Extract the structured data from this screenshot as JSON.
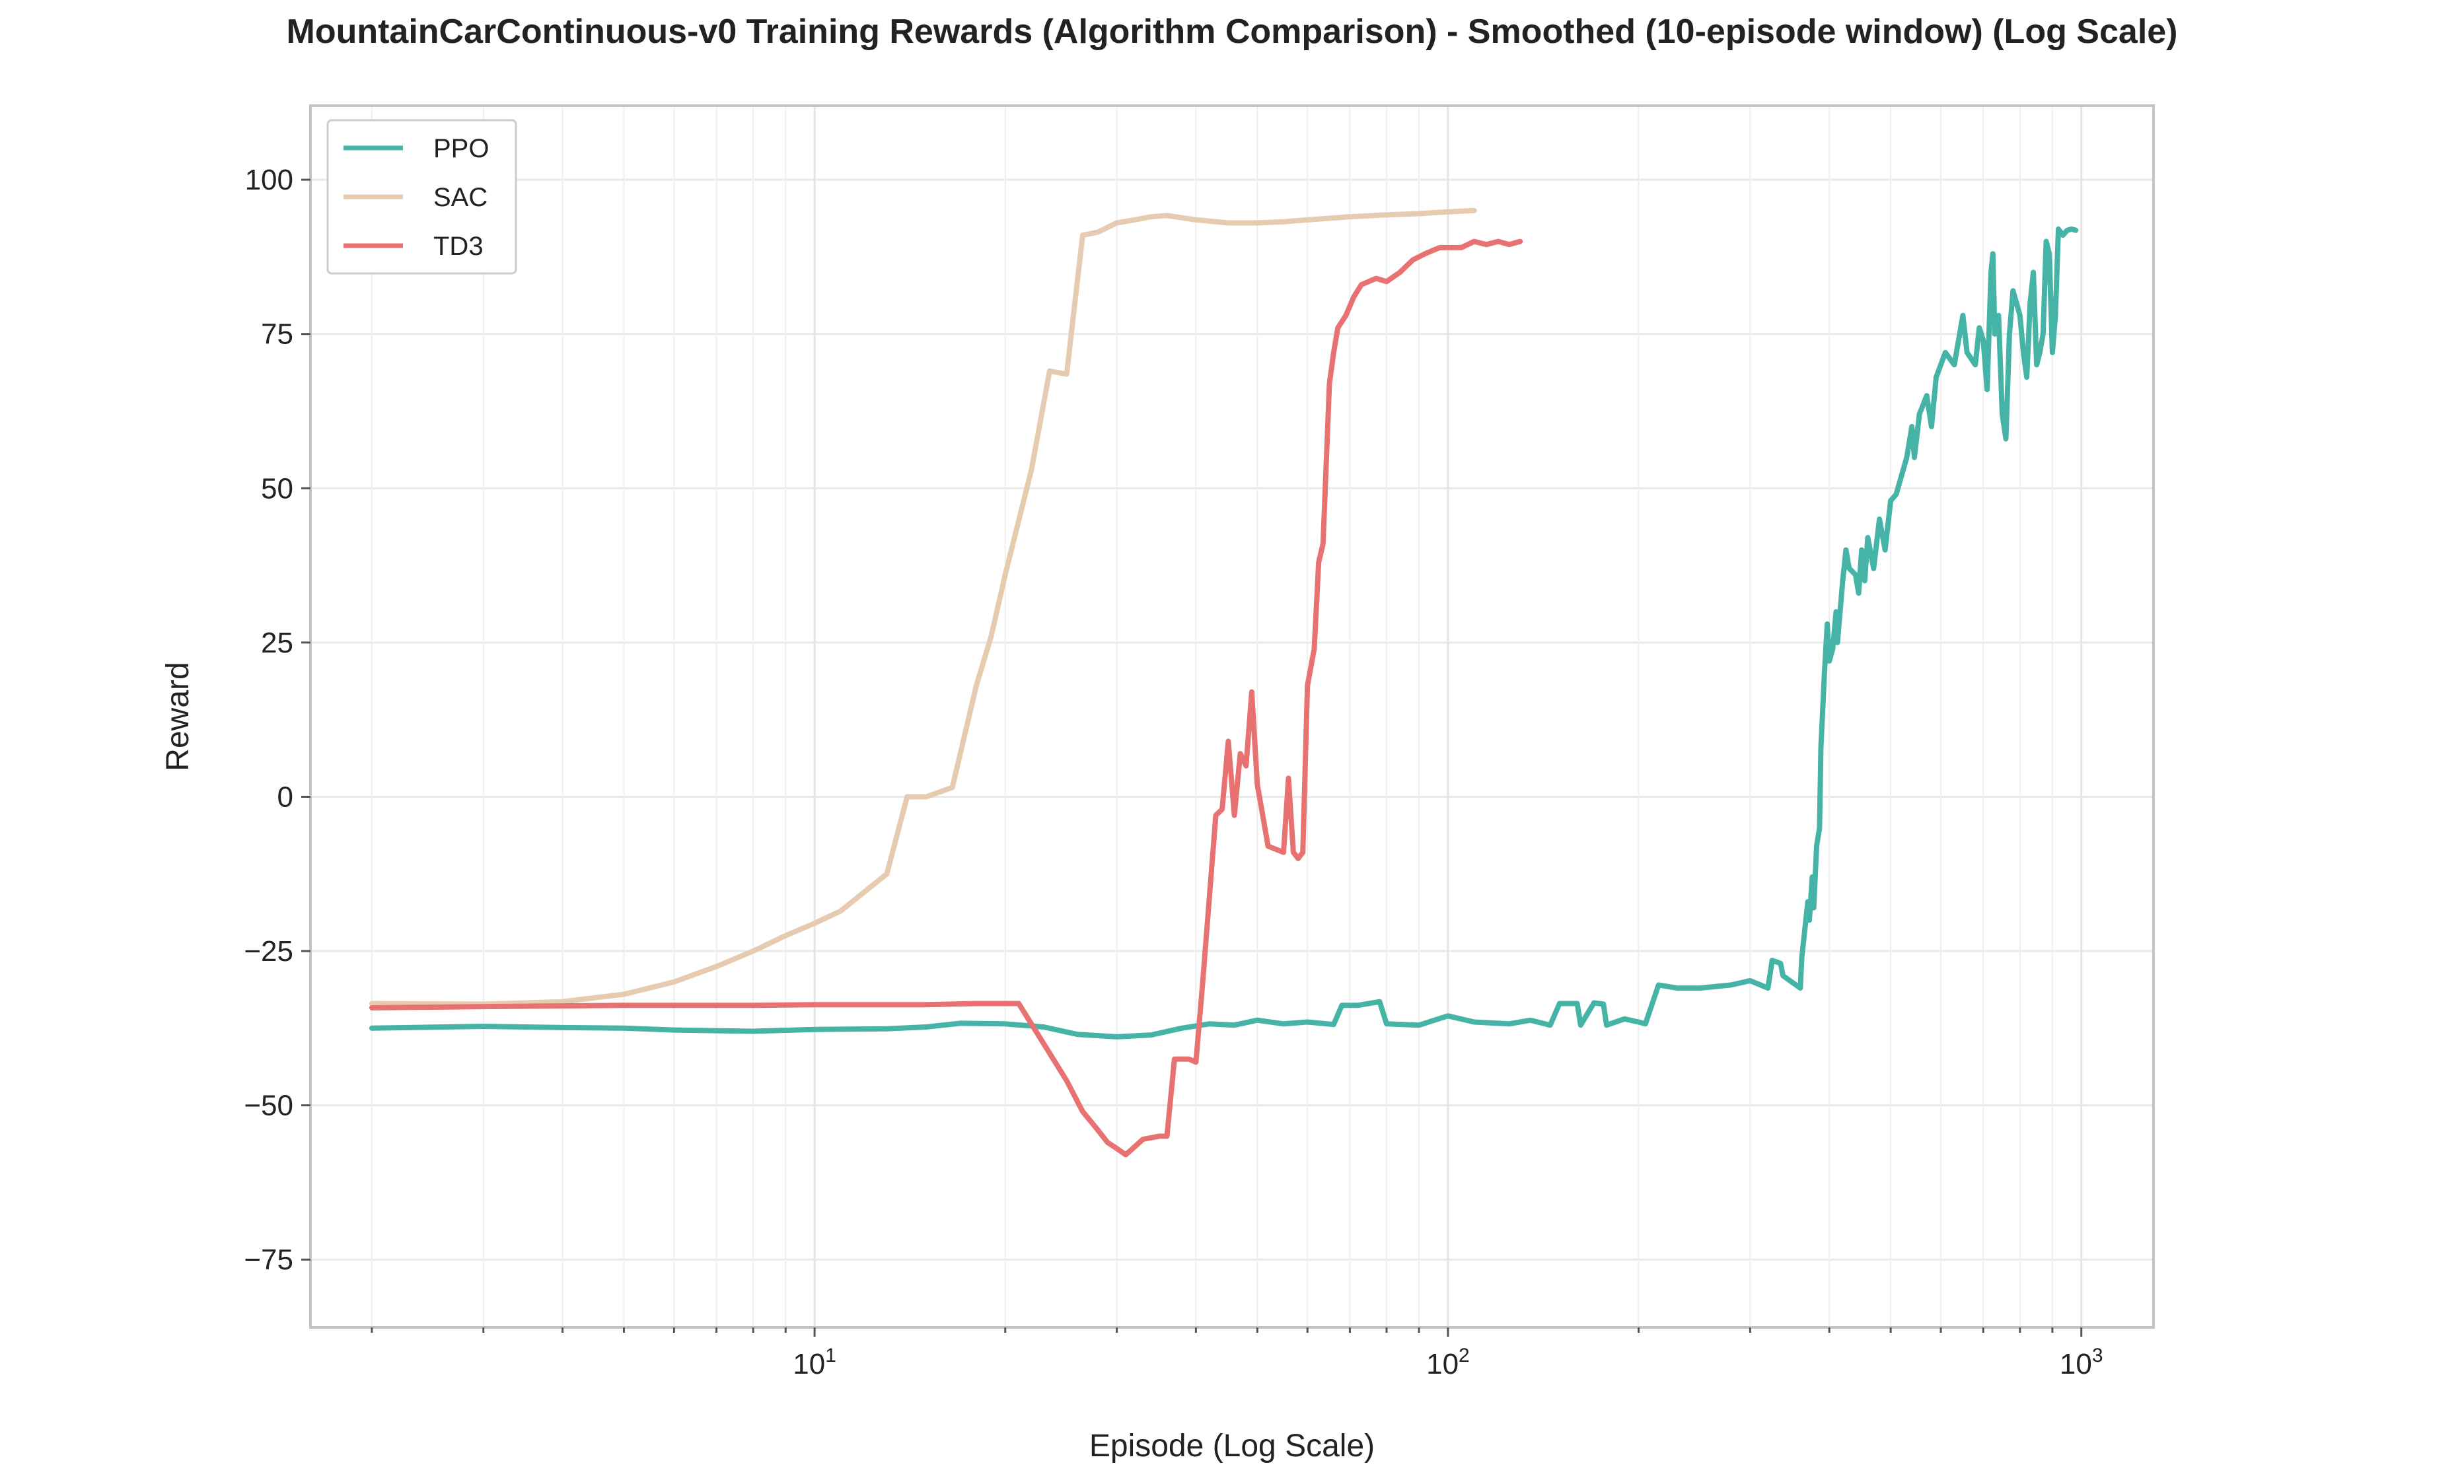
{
  "chart_data": {
    "type": "line",
    "title": "MountainCarContinuous-v0 Training Rewards (Algorithm Comparison) - Smoothed (10-episode window) (Log Scale)",
    "xlabel": "Episode (Log Scale)",
    "ylabel": "Reward",
    "xscale": "log",
    "xlim": [
      1.6,
      1300
    ],
    "ylim": [
      -86,
      112
    ],
    "yticks": [
      -75,
      -50,
      -25,
      0,
      25,
      50,
      75,
      100
    ],
    "ytick_labels": [
      "−75",
      "−50",
      "−25",
      "0",
      "25",
      "50",
      "75",
      "100"
    ],
    "xticks_major": [
      10,
      100,
      1000
    ],
    "xtick_labels": [
      {
        "base": "10",
        "exp": "1"
      },
      {
        "base": "10",
        "exp": "2"
      },
      {
        "base": "10",
        "exp": "3"
      }
    ],
    "grid": true,
    "legend_position": "top-left",
    "series": [
      {
        "name": "PPO",
        "color": "#45b3a6",
        "points": [
          [
            2,
            -37.5
          ],
          [
            3,
            -37.2
          ],
          [
            4,
            -37.4
          ],
          [
            5,
            -37.5
          ],
          [
            6,
            -37.8
          ],
          [
            8,
            -38
          ],
          [
            10,
            -37.7
          ],
          [
            13,
            -37.6
          ],
          [
            15,
            -37.3
          ],
          [
            17,
            -36.7
          ],
          [
            20,
            -36.8
          ],
          [
            23,
            -37.3
          ],
          [
            26,
            -38.5
          ],
          [
            30,
            -38.9
          ],
          [
            34,
            -38.6
          ],
          [
            38,
            -37.5
          ],
          [
            42,
            -36.8
          ],
          [
            46,
            -37
          ],
          [
            50,
            -36.2
          ],
          [
            55,
            -36.8
          ],
          [
            60,
            -36.5
          ],
          [
            66,
            -36.9
          ],
          [
            68,
            -33.8
          ],
          [
            72,
            -33.8
          ],
          [
            78,
            -33.2
          ],
          [
            80,
            -36.8
          ],
          [
            90,
            -37
          ],
          [
            100,
            -35.5
          ],
          [
            110,
            -36.5
          ],
          [
            125,
            -36.8
          ],
          [
            135,
            -36.2
          ],
          [
            145,
            -37
          ],
          [
            150,
            -33.5
          ],
          [
            160,
            -33.5
          ],
          [
            162,
            -37
          ],
          [
            170,
            -33.4
          ],
          [
            176,
            -33.6
          ],
          [
            178,
            -37
          ],
          [
            190,
            -36
          ],
          [
            200,
            -36.5
          ],
          [
            205,
            -36.8
          ],
          [
            215,
            -30.5
          ],
          [
            230,
            -31
          ],
          [
            250,
            -31
          ],
          [
            280,
            -30.5
          ],
          [
            300,
            -29.8
          ],
          [
            320,
            -31
          ],
          [
            325,
            -26.5
          ],
          [
            335,
            -27
          ],
          [
            338,
            -29
          ],
          [
            360,
            -31
          ],
          [
            362,
            -26
          ],
          [
            370,
            -17
          ],
          [
            372,
            -20
          ],
          [
            376,
            -13
          ],
          [
            378,
            -18
          ],
          [
            382,
            -8
          ],
          [
            386,
            -5
          ],
          [
            388,
            8
          ],
          [
            393,
            20
          ],
          [
            397,
            28
          ],
          [
            400,
            22
          ],
          [
            405,
            24
          ],
          [
            410,
            30
          ],
          [
            412,
            25
          ],
          [
            420,
            35
          ],
          [
            425,
            40
          ],
          [
            430,
            37
          ],
          [
            440,
            36
          ],
          [
            445,
            33
          ],
          [
            450,
            40
          ],
          [
            455,
            35
          ],
          [
            460,
            42
          ],
          [
            470,
            37
          ],
          [
            480,
            45
          ],
          [
            490,
            40
          ],
          [
            500,
            48
          ],
          [
            510,
            49
          ],
          [
            520,
            52
          ],
          [
            530,
            55
          ],
          [
            540,
            60
          ],
          [
            545,
            55
          ],
          [
            555,
            62
          ],
          [
            570,
            65
          ],
          [
            580,
            60
          ],
          [
            590,
            68
          ],
          [
            610,
            72
          ],
          [
            630,
            70
          ],
          [
            650,
            78
          ],
          [
            660,
            72
          ],
          [
            680,
            70
          ],
          [
            690,
            76
          ],
          [
            700,
            74
          ],
          [
            710,
            66
          ],
          [
            720,
            85
          ],
          [
            725,
            88
          ],
          [
            730,
            75
          ],
          [
            740,
            78
          ],
          [
            745,
            70
          ],
          [
            750,
            62
          ],
          [
            760,
            58
          ],
          [
            770,
            75
          ],
          [
            780,
            82
          ],
          [
            790,
            80
          ],
          [
            800,
            78
          ],
          [
            810,
            72
          ],
          [
            820,
            68
          ],
          [
            830,
            80
          ],
          [
            840,
            85
          ],
          [
            850,
            70
          ],
          [
            860,
            72
          ],
          [
            870,
            75
          ],
          [
            880,
            90
          ],
          [
            890,
            88
          ],
          [
            900,
            72
          ],
          [
            910,
            78
          ],
          [
            920,
            92
          ],
          [
            935,
            91
          ],
          [
            950,
            91.8
          ],
          [
            965,
            92
          ],
          [
            980,
            91.8
          ]
        ]
      },
      {
        "name": "SAC",
        "color": "#e6cbb0",
        "points": [
          [
            2,
            -33.5
          ],
          [
            3,
            -33.6
          ],
          [
            4,
            -33.2
          ],
          [
            5,
            -32
          ],
          [
            6,
            -30
          ],
          [
            7,
            -27.5
          ],
          [
            8,
            -25
          ],
          [
            9,
            -22.5
          ],
          [
            10,
            -20.5
          ],
          [
            11,
            -18.5
          ],
          [
            13,
            -12.5
          ],
          [
            14,
            0
          ],
          [
            15,
            0
          ],
          [
            16.5,
            1.5
          ],
          [
            18,
            18
          ],
          [
            19,
            26
          ],
          [
            20,
            36
          ],
          [
            22,
            53
          ],
          [
            23.5,
            69
          ],
          [
            25,
            68.5
          ],
          [
            26.5,
            91
          ],
          [
            28,
            91.5
          ],
          [
            30,
            93
          ],
          [
            32,
            93.5
          ],
          [
            34,
            94
          ],
          [
            36,
            94.2
          ],
          [
            40,
            93.5
          ],
          [
            45,
            93
          ],
          [
            50,
            93
          ],
          [
            55,
            93.2
          ],
          [
            60,
            93.5
          ],
          [
            70,
            94
          ],
          [
            80,
            94.3
          ],
          [
            90,
            94.5
          ],
          [
            100,
            94.8
          ],
          [
            110,
            95
          ]
        ]
      },
      {
        "name": "TD3",
        "color": "#e87171",
        "points": [
          [
            2,
            -34.2
          ],
          [
            3,
            -34
          ],
          [
            5,
            -33.8
          ],
          [
            8,
            -33.8
          ],
          [
            10,
            -33.7
          ],
          [
            15,
            -33.7
          ],
          [
            18,
            -33.5
          ],
          [
            21,
            -33.5
          ],
          [
            23,
            -40
          ],
          [
            25,
            -46
          ],
          [
            26.5,
            -51
          ],
          [
            28,
            -54
          ],
          [
            29,
            -56
          ],
          [
            30,
            -57
          ],
          [
            31,
            -58
          ],
          [
            33,
            -55.5
          ],
          [
            35,
            -55
          ],
          [
            36,
            -55
          ],
          [
            37,
            -42.5
          ],
          [
            39,
            -42.5
          ],
          [
            40,
            -43
          ],
          [
            41,
            -30
          ],
          [
            43,
            -3
          ],
          [
            44,
            -2
          ],
          [
            45,
            9
          ],
          [
            46,
            -3
          ],
          [
            47,
            7
          ],
          [
            48,
            5
          ],
          [
            49,
            17
          ],
          [
            50,
            2
          ],
          [
            51,
            -3
          ],
          [
            52,
            -8
          ],
          [
            55,
            -9
          ],
          [
            56,
            3
          ],
          [
            57,
            -9
          ],
          [
            58,
            -10
          ],
          [
            59,
            -9
          ],
          [
            60,
            18
          ],
          [
            61.5,
            24
          ],
          [
            62.5,
            38
          ],
          [
            63.5,
            41
          ],
          [
            65,
            67
          ],
          [
            66,
            72
          ],
          [
            67,
            76
          ],
          [
            69,
            78
          ],
          [
            71,
            81
          ],
          [
            73,
            83
          ],
          [
            77,
            84
          ],
          [
            80,
            83.5
          ],
          [
            84,
            85
          ],
          [
            88,
            87
          ],
          [
            92,
            88
          ],
          [
            97,
            89
          ],
          [
            100,
            89
          ],
          [
            105,
            89
          ],
          [
            110,
            90
          ],
          [
            115,
            89.5
          ],
          [
            120,
            90
          ],
          [
            125,
            89.5
          ],
          [
            130,
            90
          ]
        ]
      }
    ]
  }
}
